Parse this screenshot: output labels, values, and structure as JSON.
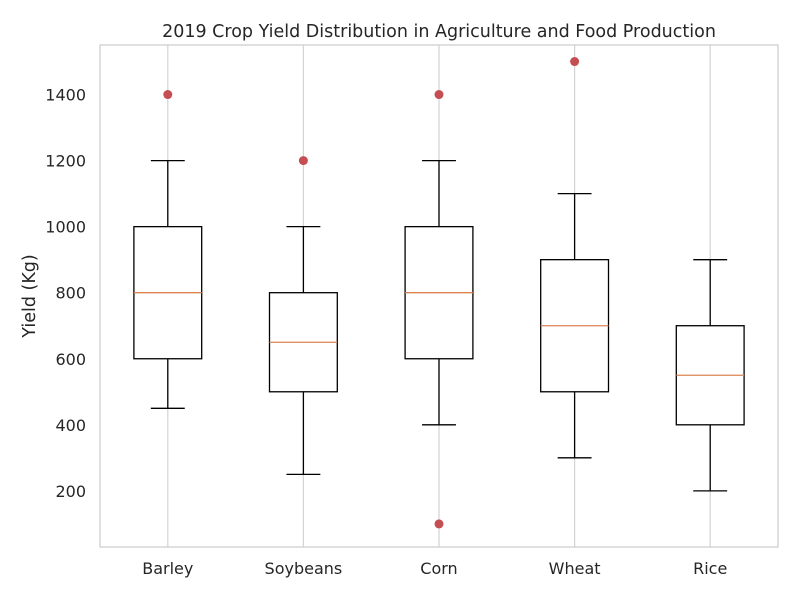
{
  "chart_data": {
    "type": "box",
    "title": "2019 Crop Yield Distribution in Agriculture and Food Production",
    "xlabel": "",
    "ylabel": "Yield (Kg)",
    "ylim": [
      30,
      1550
    ],
    "yticks": [
      200,
      400,
      600,
      800,
      1000,
      1200,
      1400
    ],
    "grid": "vertical",
    "categories": [
      "Barley",
      "Soybeans",
      "Corn",
      "Wheat",
      "Rice"
    ],
    "boxes": [
      {
        "category": "Barley",
        "whisker_low": 450,
        "q1": 600,
        "median": 800,
        "q3": 1000,
        "whisker_high": 1200,
        "outliers": [
          1400
        ]
      },
      {
        "category": "Soybeans",
        "whisker_low": 250,
        "q1": 500,
        "median": 650,
        "q3": 800,
        "whisker_high": 1000,
        "outliers": [
          1200
        ]
      },
      {
        "category": "Corn",
        "whisker_low": 400,
        "q1": 600,
        "median": 800,
        "q3": 1000,
        "whisker_high": 1200,
        "outliers": [
          100,
          1400
        ]
      },
      {
        "category": "Wheat",
        "whisker_low": 300,
        "q1": 500,
        "median": 700,
        "q3": 900,
        "whisker_high": 1100,
        "outliers": [
          1500
        ]
      },
      {
        "category": "Rice",
        "whisker_low": 200,
        "q1": 400,
        "median": 550,
        "q3": 700,
        "whisker_high": 900,
        "outliers": []
      }
    ],
    "colors": {
      "box": "#000000",
      "median": "#dd8452",
      "outlier": "#c44e52",
      "grid": "#d3d3d3",
      "frame": "#cccccc",
      "text": "#262626"
    }
  }
}
